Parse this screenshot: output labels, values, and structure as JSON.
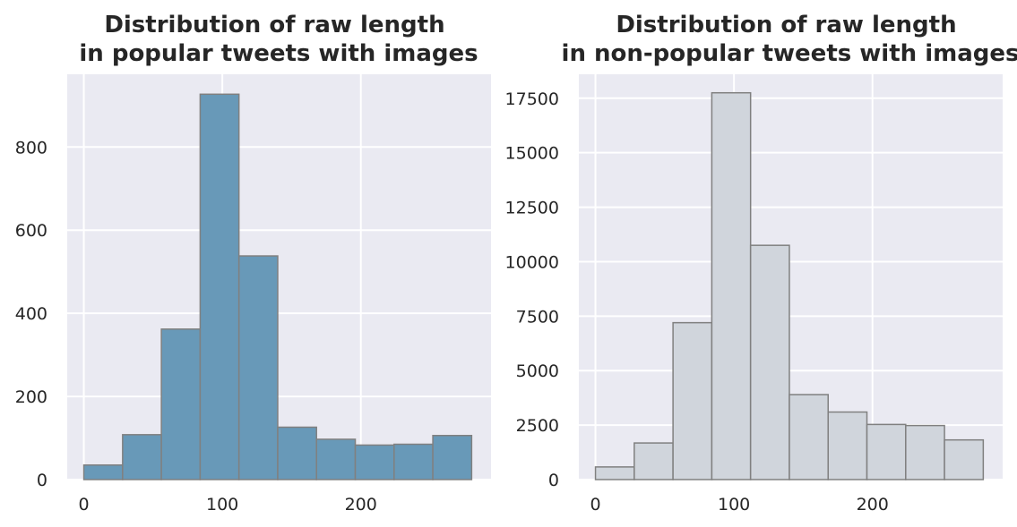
{
  "chart_data": [
    {
      "type": "bar",
      "title_lines": [
        "Distribution of raw length",
        "in popular tweets with images"
      ],
      "xlabel": "",
      "ylabel": "",
      "bin_edges": [
        0,
        28,
        56,
        84,
        112,
        140,
        168,
        196,
        224,
        252,
        280
      ],
      "values": [
        35,
        108,
        362,
        927,
        538,
        126,
        97,
        83,
        85,
        106
      ],
      "xlim": [
        -12,
        294
      ],
      "ylim": [
        0,
        975
      ],
      "xticks": [
        0,
        100,
        200
      ],
      "xtick_labels": [
        "0",
        "100",
        "200"
      ],
      "yticks": [
        0,
        200,
        400,
        600,
        800
      ],
      "ytick_labels": [
        "0",
        "200",
        "400",
        "600",
        "800"
      ],
      "bar_color": "#6899b8",
      "edge_color": "#808080",
      "grid": true
    },
    {
      "type": "bar",
      "title_lines": [
        "Distribution of raw length",
        "in non-popular tweets with images"
      ],
      "xlabel": "",
      "ylabel": "",
      "bin_edges": [
        0,
        28,
        56,
        84,
        112,
        140,
        168,
        196,
        224,
        252,
        280
      ],
      "values": [
        580,
        1680,
        7200,
        17750,
        10750,
        3900,
        3100,
        2530,
        2480,
        1820
      ],
      "xlim": [
        -12,
        294
      ],
      "ylim": [
        0,
        18600
      ],
      "xticks": [
        0,
        100,
        200
      ],
      "xtick_labels": [
        "0",
        "100",
        "200"
      ],
      "yticks": [
        0,
        2500,
        5000,
        7500,
        10000,
        12500,
        15000,
        17500
      ],
      "ytick_labels": [
        "0",
        "2500",
        "5000",
        "7500",
        "10000",
        "12500",
        "15000",
        "17500"
      ],
      "bar_color": "#d0d5dc",
      "edge_color": "#808080",
      "grid": true
    }
  ],
  "style": {
    "plot_background": "#eaeaf2",
    "grid_color": "#ffffff",
    "text_color": "#262626"
  }
}
